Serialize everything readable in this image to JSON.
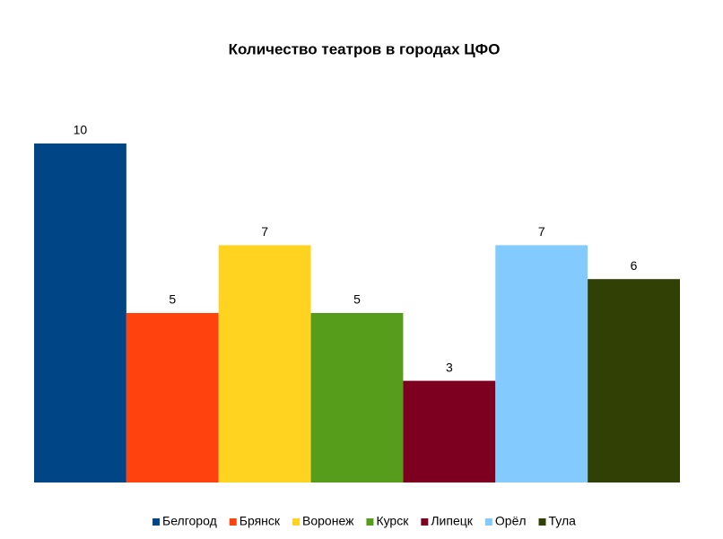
{
  "chart_data": {
    "type": "bar",
    "title": "Количество театров в городах ЦФО",
    "categories": [
      "Белгород",
      "Брянск",
      "Воронеж",
      "Курск",
      "Липецк",
      "Орёл",
      "Тула"
    ],
    "values": [
      10,
      5,
      7,
      5,
      3,
      7,
      6
    ],
    "colors": [
      "#004586",
      "#ff420e",
      "#ffd320",
      "#579d1c",
      "#7e0021",
      "#83caff",
      "#314004"
    ],
    "ylim": [
      0,
      10
    ]
  }
}
